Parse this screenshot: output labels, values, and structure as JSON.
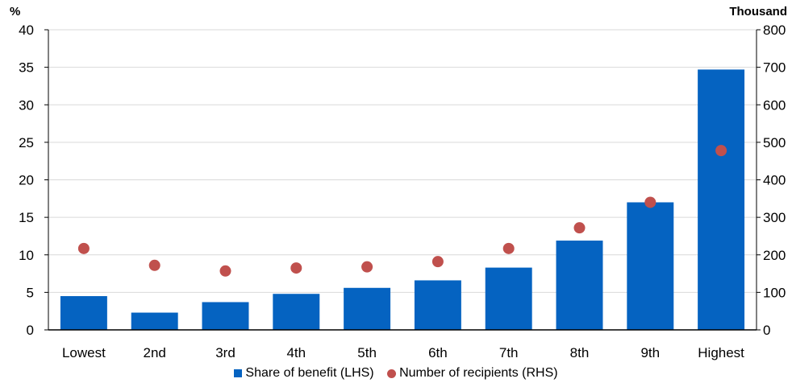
{
  "chart_data": {
    "type": "bar",
    "categories": [
      "Lowest",
      "2nd",
      "3rd",
      "4th",
      "5th",
      "6th",
      "7th",
      "8th",
      "9th",
      "Highest"
    ],
    "series": [
      {
        "name": "Share of benefit (LHS)",
        "axis": "left",
        "kind": "bar",
        "color": "#0563C1",
        "values": [
          4.5,
          2.3,
          3.7,
          4.8,
          5.6,
          6.6,
          8.3,
          11.9,
          17.0,
          34.7
        ]
      },
      {
        "name": "Number of recipients (RHS)",
        "axis": "right",
        "kind": "scatter",
        "color": "#C0504D",
        "values": [
          217,
          172,
          157,
          165,
          168,
          182,
          217,
          272,
          340,
          478
        ]
      }
    ],
    "left_axis": {
      "unit": "%",
      "ylim": [
        0,
        40
      ],
      "ticks": [
        0,
        5,
        10,
        15,
        20,
        25,
        30,
        35,
        40
      ]
    },
    "right_axis": {
      "unit": "Thousand",
      "ylim": [
        0,
        800
      ],
      "ticks": [
        0,
        100,
        200,
        300,
        400,
        500,
        600,
        700,
        800
      ]
    },
    "grid": true,
    "legend_position": "bottom"
  }
}
